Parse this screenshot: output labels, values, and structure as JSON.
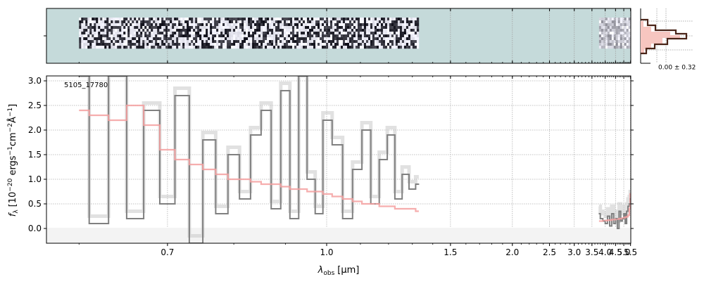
{
  "chart_data": {
    "type": "line",
    "label": "5105_17780",
    "xlabel": "λobs [µm]",
    "xlabel_main": "λ",
    "xlabel_sub": "obs",
    "xlabel_unit": "[µm]",
    "ylabel": "fλ [10−20 ergs−1cm−2Å−1]",
    "ylabel_main": "f",
    "ylabel_sub": "λ",
    "ylabel_unit": "[10",
    "ylabel_exp1": "−20",
    "ylabel_mid1": " ergs",
    "ylabel_exp2": "−1",
    "ylabel_mid2": "cm",
    "ylabel_exp3": "−2",
    "ylabel_mid3": "Å",
    "ylabel_exp4": "−1",
    "ylabel_end": "]",
    "xlim": [
      0.57,
      5.52
    ],
    "x_scale": "reciprocal",
    "ylim": [
      -0.3,
      3.1
    ],
    "xticks": [
      0.7,
      1.0,
      1.5,
      2.0,
      2.5,
      3.0,
      3.5,
      4.0,
      4.5,
      5.0,
      5.5
    ],
    "xtick_labels": [
      "0.7",
      "1.0",
      "1.5",
      "2.0",
      "2.5",
      "3.0",
      "3.5",
      "4.0",
      "4.5",
      "5.0",
      "5.5"
    ],
    "yticks": [
      0.0,
      0.5,
      1.0,
      1.5,
      2.0,
      2.5,
      3.0
    ],
    "ytick_labels": [
      "0.0",
      "0.5",
      "1.0",
      "1.5",
      "2.0",
      "2.5",
      "3.0"
    ],
    "grid": true,
    "inset_label": "0.00 ± 0.32",
    "colors": {
      "data": "#808080",
      "model": "#f4a0a0",
      "two_d_background": "#c5dada",
      "histogram": "#4a2418",
      "histogram_fill": "#f7c6c0"
    },
    "series": [
      {
        "segment": "prism-blue",
        "x": [
          0.6,
          0.62,
          0.64,
          0.66,
          0.68,
          0.7,
          0.72,
          0.74,
          0.76,
          0.78,
          0.8,
          0.82,
          0.84,
          0.86,
          0.88,
          0.9,
          0.92,
          0.94,
          0.96,
          0.98,
          1.0,
          1.03,
          1.06,
          1.09,
          1.12,
          1.15,
          1.18,
          1.21,
          1.24,
          1.27,
          1.3,
          1.33
        ],
        "flux": [
          3.1,
          0.1,
          3.1,
          0.2,
          2.4,
          0.5,
          2.7,
          -0.3,
          1.8,
          0.3,
          1.5,
          0.6,
          1.9,
          2.4,
          0.4,
          2.8,
          0.2,
          3.1,
          1.0,
          0.3,
          2.2,
          1.7,
          0.2,
          1.2,
          2.0,
          0.5,
          1.4,
          1.9,
          0.6,
          1.1,
          0.8,
          0.9
        ],
        "model": [
          2.4,
          2.3,
          2.2,
          2.5,
          2.1,
          1.6,
          1.4,
          1.3,
          1.2,
          1.1,
          1.0,
          1.0,
          0.95,
          0.9,
          0.9,
          0.85,
          0.8,
          0.8,
          0.75,
          0.75,
          0.7,
          0.65,
          0.6,
          0.55,
          0.5,
          0.5,
          0.45,
          0.45,
          0.4,
          0.4,
          0.4,
          0.35
        ]
      },
      {
        "segment": "prism-red",
        "x": [
          3.75,
          3.85,
          3.95,
          4.05,
          4.15,
          4.25,
          4.35,
          4.45,
          4.55,
          4.65,
          4.75,
          4.85,
          4.95,
          5.05,
          5.15,
          5.25,
          5.35,
          5.45,
          5.5
        ],
        "flux": [
          0.3,
          0.2,
          0.15,
          0.1,
          0.25,
          0.05,
          0.3,
          0.1,
          0.2,
          0.0,
          0.35,
          0.15,
          0.2,
          0.3,
          0.1,
          0.35,
          0.45,
          0.5,
          0.6
        ],
        "model": [
          0.15,
          0.15,
          0.16,
          0.16,
          0.17,
          0.17,
          0.18,
          0.18,
          0.19,
          0.19,
          0.2,
          0.2,
          0.21,
          0.22,
          0.23,
          0.24,
          0.27,
          0.4,
          0.7
        ]
      }
    ]
  }
}
